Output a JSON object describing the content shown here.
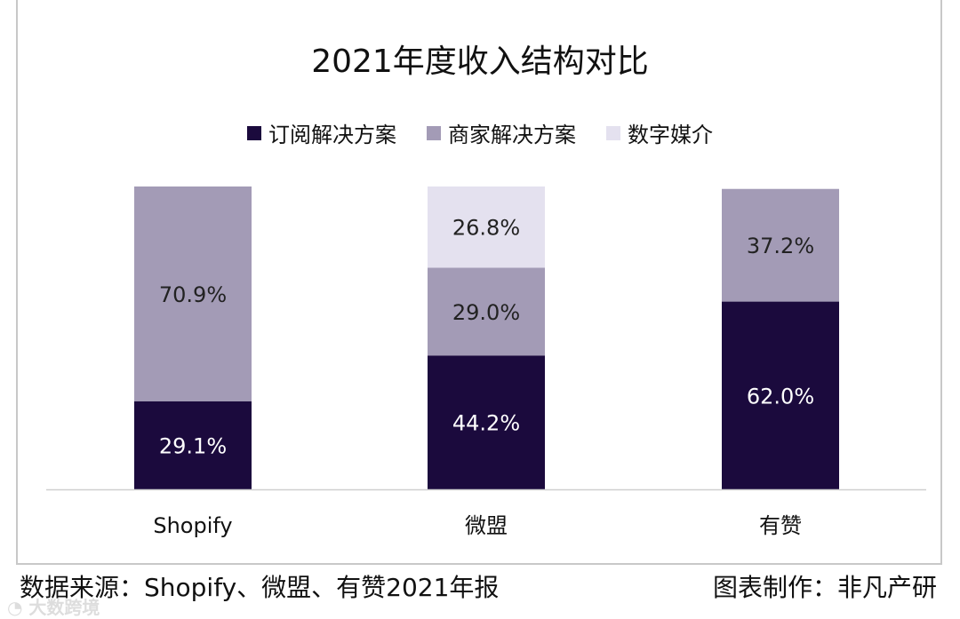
{
  "chart_data": {
    "type": "bar",
    "stacked": true,
    "title": "2021年度收入结构对比",
    "categories": [
      "Shopify",
      "微盟",
      "有赞"
    ],
    "series": [
      {
        "name": "订阅解决方案",
        "color": "#1b0a3d",
        "values": [
          29.1,
          44.2,
          62.0
        ],
        "labels": [
          "29.1%",
          "44.2%",
          "62.0%"
        ]
      },
      {
        "name": "商家解决方案",
        "color": "#a39bb6",
        "values": [
          70.9,
          29.0,
          37.2
        ],
        "labels": [
          "70.9%",
          "29.0%",
          "37.2%"
        ]
      },
      {
        "name": "数字媒介",
        "color": "#e4e1ef",
        "values": [
          0,
          26.8,
          0
        ],
        "labels": [
          "",
          "26.8%",
          ""
        ]
      }
    ],
    "ylim": [
      0,
      100
    ],
    "grid": false,
    "legend": "top"
  },
  "footer": {
    "source": "数据来源：Shopify、微盟、有赞2021年报",
    "credit": "图表制作：非凡产研",
    "watermark": "大数跨境"
  }
}
